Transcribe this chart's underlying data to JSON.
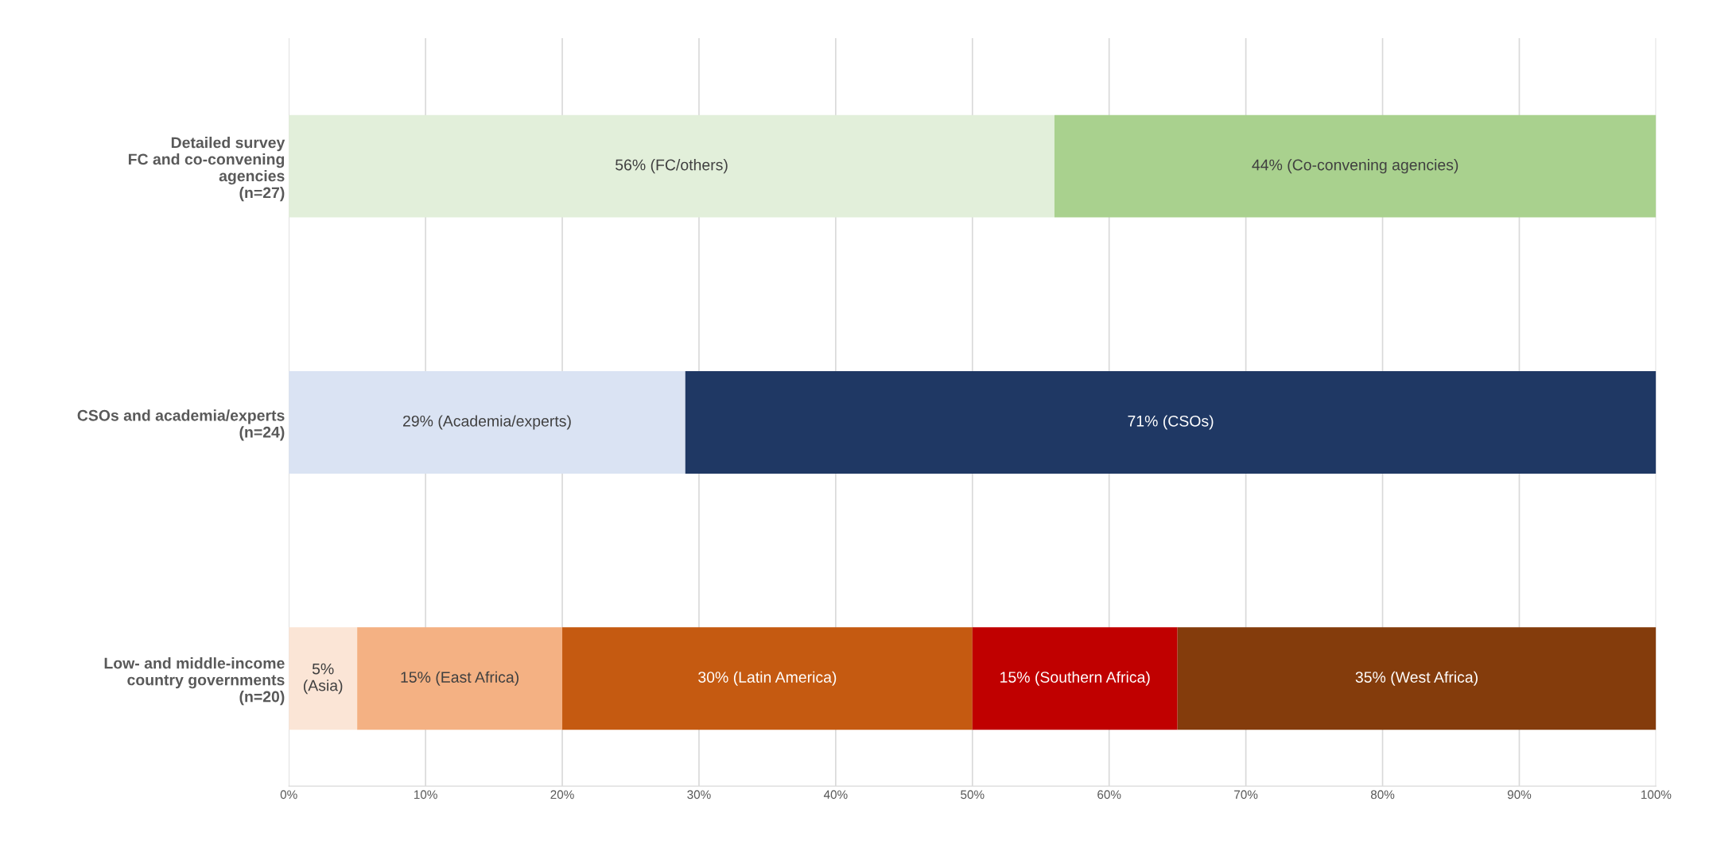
{
  "chart_data": {
    "type": "bar",
    "orientation": "horizontal",
    "stacked": true,
    "categories": [
      "Detailed survey\nFC and co-convening\nagencies\n(n=27)",
      "CSOs and academia/experts\n(n=24)",
      "Low- and middle-income\ncountry governments\n(n=20)"
    ],
    "series": [
      {
        "colors": [
          "#e2efda",
          "#dae3f3",
          "#fbe5d6"
        ],
        "values": [
          56,
          29,
          5
        ],
        "value_labels": [
          "56% (FC/others)",
          "29% (Academia/experts)",
          "5%\n(Asia)"
        ]
      },
      {
        "colors": [
          "#a9d18e",
          "#1f3864",
          "#f4b183"
        ],
        "values": [
          44,
          71,
          15
        ],
        "value_labels": [
          "44% (Co-convening agencies)",
          "71% (CSOs)",
          "15% (East Africa)"
        ]
      },
      {
        "colors": [
          null,
          null,
          "#c55a11"
        ],
        "values": [
          null,
          null,
          30
        ],
        "value_labels": [
          null,
          null,
          "30% (Latin America)"
        ]
      },
      {
        "colors": [
          null,
          null,
          "#c00000"
        ],
        "values": [
          null,
          null,
          15
        ],
        "value_labels": [
          null,
          null,
          "15% (Southern Africa)"
        ]
      },
      {
        "colors": [
          null,
          null,
          "#843c0c"
        ],
        "values": [
          null,
          null,
          35
        ],
        "value_labels": [
          null,
          null,
          "35% (West Africa)"
        ]
      }
    ],
    "xlim": [
      0,
      100
    ],
    "xticks": [
      {
        "value": 0,
        "label": "0%"
      },
      {
        "value": 10,
        "label": "10%"
      },
      {
        "value": 20,
        "label": "20%"
      },
      {
        "value": 30,
        "label": "30%"
      },
      {
        "value": 40,
        "label": "40%"
      },
      {
        "value": 50,
        "label": "50%"
      },
      {
        "value": 60,
        "label": "60%"
      },
      {
        "value": 70,
        "label": "70%"
      },
      {
        "value": 80,
        "label": "80%"
      },
      {
        "value": 90,
        "label": "90%"
      },
      {
        "value": 100,
        "label": "100%"
      }
    ],
    "grid": "x",
    "legend": false
  }
}
